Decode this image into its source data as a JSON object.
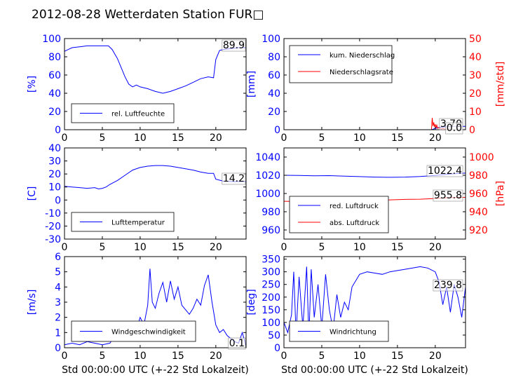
{
  "title": "2012-08-28 Wetterdaten Station FUR□",
  "colors": {
    "primary": "#0000ff",
    "secondary": "#ff0000",
    "text": "#000000"
  },
  "chart_data": [
    {
      "id": "humidity",
      "type": "line",
      "ylabel": "[%]",
      "xlim": [
        0,
        24
      ],
      "ylim": [
        0,
        100
      ],
      "xticks": [
        0,
        5,
        10,
        15,
        20
      ],
      "yticks": [
        0,
        20,
        40,
        60,
        80,
        100
      ],
      "legend_position": "lower-left",
      "value_label": "89.9",
      "series": [
        {
          "name": "rel. Luftfeuchte",
          "color": "#0000ff",
          "x": [
            0,
            0.5,
            1,
            2,
            3,
            4,
            5,
            5.8,
            6.3,
            7,
            7.5,
            8,
            8.5,
            9,
            9.5,
            10,
            11,
            12,
            13,
            14,
            15,
            16,
            17,
            18,
            19,
            19.7,
            20,
            20.5,
            21,
            22,
            23,
            24
          ],
          "y": [
            86,
            88,
            90,
            91,
            92,
            92,
            92,
            92,
            88,
            78,
            68,
            58,
            50,
            47,
            49,
            47,
            45,
            42,
            40,
            42,
            45,
            48,
            52,
            56,
            58,
            57,
            77,
            87,
            88,
            89,
            90,
            90
          ]
        }
      ]
    },
    {
      "id": "precipitation",
      "type": "line",
      "ylabel": "[mm]",
      "ylabel_right": "[mm/std]",
      "xlim": [
        0,
        24
      ],
      "ylim": [
        0,
        100
      ],
      "ylim_right": [
        0,
        50
      ],
      "xticks": [
        0,
        5,
        10,
        15,
        20
      ],
      "yticks": [
        0,
        20,
        40,
        60,
        80,
        100
      ],
      "yticks_right": [
        0,
        10,
        20,
        30,
        40,
        50
      ],
      "legend_position": "upper-left",
      "value_labels": [
        "3.70",
        "0.0"
      ],
      "series": [
        {
          "name": "kum. Niederschlag",
          "color": "#0000ff",
          "axis": "left",
          "x": [
            0,
            19.5,
            19.7,
            20,
            20.5,
            21,
            22,
            24
          ],
          "y": [
            0,
            0,
            0.5,
            1.5,
            2.5,
            3,
            3.5,
            3.7
          ]
        },
        {
          "name": "Niederschlagsrate",
          "color": "#ff0000",
          "axis": "right",
          "x": [
            0,
            19.5,
            19.6,
            19.7,
            19.8,
            19.9,
            20.0,
            20.1,
            20.2,
            20.3,
            20.5,
            20.8,
            21.0,
            21.3,
            21.6,
            22,
            24
          ],
          "y": [
            0,
            0,
            6.5,
            2,
            4,
            1.5,
            3,
            1,
            2.5,
            0.8,
            1.2,
            0.3,
            0.8,
            0.2,
            0.5,
            0,
            0
          ]
        }
      ]
    },
    {
      "id": "temperature",
      "type": "line",
      "ylabel": "[C]",
      "xlim": [
        0,
        24
      ],
      "ylim": [
        -30,
        40
      ],
      "xticks": [
        0,
        5,
        10,
        15,
        20
      ],
      "yticks": [
        -30,
        -20,
        -10,
        0,
        10,
        20,
        30,
        40
      ],
      "legend_position": "lower-left",
      "value_label": "14.2",
      "series": [
        {
          "name": "Lufttemperatur",
          "color": "#0000ff",
          "x": [
            0,
            1,
            2,
            3,
            4,
            4.5,
            5,
            5.5,
            6,
            7,
            8,
            9,
            10,
            11,
            12,
            13,
            14,
            15,
            16,
            17,
            18,
            19,
            19.7,
            20,
            21,
            22,
            23,
            24
          ],
          "y": [
            10.5,
            10,
            9.5,
            9,
            9.5,
            8.5,
            9,
            10,
            12,
            15,
            19,
            23,
            25,
            26,
            26.5,
            26.5,
            26,
            25,
            24,
            23,
            21.5,
            20.5,
            20.5,
            16,
            14.5,
            14.2,
            14.2,
            14.2
          ]
        }
      ]
    },
    {
      "id": "pressure",
      "type": "line",
      "ylabel_right": "[hPa]",
      "xlim": [
        0,
        24
      ],
      "ylim": [
        950,
        1050
      ],
      "ylim_right": [
        910,
        1010
      ],
      "xticks": [
        0,
        5,
        10,
        15,
        20
      ],
      "yticks": [
        960,
        980,
        1000,
        1020,
        1040
      ],
      "yticks_right": [
        920,
        940,
        960,
        980,
        1000
      ],
      "legend_position": "lower-left",
      "value_labels": [
        "1022.4",
        "955.8"
      ],
      "series": [
        {
          "name": "red. Luftdruck",
          "color": "#0000ff",
          "axis": "left",
          "x": [
            0,
            2,
            4,
            6,
            8,
            10,
            12,
            14,
            16,
            18,
            20,
            22,
            24
          ],
          "y": [
            1020,
            1019.8,
            1019.5,
            1019.6,
            1019,
            1018.5,
            1018,
            1017.8,
            1018,
            1018.7,
            1019.8,
            1021.5,
            1022.4
          ]
        },
        {
          "name": "abs. Luftdruck",
          "color": "#ff0000",
          "axis": "right",
          "x": [
            0,
            2,
            4,
            6,
            8,
            10,
            12,
            14,
            16,
            18,
            20,
            22,
            24
          ],
          "y": [
            951.5,
            951.2,
            951,
            951.5,
            952,
            952.5,
            952.8,
            953,
            953.5,
            953.8,
            954.5,
            955.5,
            955.8
          ]
        }
      ]
    },
    {
      "id": "wind_speed",
      "type": "line",
      "ylabel": "[m/s]",
      "xlabel": "Std 00:00:00 UTC (+-22 Std Lokalzeit)",
      "xlim": [
        0,
        24
      ],
      "ylim": [
        0,
        6
      ],
      "xticks": [
        0,
        5,
        10,
        15,
        20
      ],
      "yticks": [
        0,
        1,
        2,
        3,
        4,
        5,
        6
      ],
      "legend_position": "lower-left",
      "value_label": "0.1",
      "series": [
        {
          "name": "Windgeschwindigkeit",
          "color": "#0000ff",
          "x": [
            0,
            1,
            2,
            3,
            4,
            5,
            6,
            6.5,
            7,
            7.5,
            8,
            8.5,
            9,
            9.5,
            10,
            10.5,
            11,
            11.3,
            11.6,
            12,
            12.5,
            13,
            13.5,
            14,
            14.5,
            15,
            15.5,
            16,
            16.5,
            17,
            17.5,
            18,
            18.5,
            19,
            19.5,
            20,
            20.5,
            21,
            21.5,
            22,
            22.5,
            23,
            23.5,
            24
          ],
          "y": [
            0.2,
            0.3,
            0.2,
            0.4,
            0.3,
            0.2,
            0.3,
            0.7,
            1.0,
            0.8,
            1.2,
            0.9,
            1.5,
            1.2,
            2.0,
            1.5,
            2.8,
            5.2,
            3.0,
            2.6,
            3.6,
            4.3,
            3.0,
            4.4,
            3.2,
            4.0,
            2.8,
            2.5,
            2.2,
            2.6,
            3.2,
            2.8,
            4.1,
            4.8,
            3.0,
            1.5,
            1.0,
            1.2,
            0.8,
            0.6,
            0.4,
            0.3,
            1.0,
            0.1
          ]
        }
      ]
    },
    {
      "id": "wind_direction",
      "type": "line",
      "ylabel": "[deg]",
      "xlabel": "Std 00:00:00 UTC (+-22 Std Lokalzeit)",
      "xlim": [
        0,
        24
      ],
      "ylim": [
        0,
        360
      ],
      "xticks": [
        0,
        5,
        10,
        15,
        20
      ],
      "yticks": [
        0,
        50,
        100,
        150,
        200,
        250,
        300,
        350
      ],
      "legend_position": "lower-left",
      "value_label": "239.8",
      "series": [
        {
          "name": "Windrichtung",
          "color": "#0000ff",
          "x": [
            0,
            0.5,
            1,
            1.3,
            1.6,
            2,
            2.5,
            3,
            3.3,
            3.6,
            4,
            4.5,
            5,
            5.5,
            6,
            6.5,
            7,
            7.5,
            8,
            8.5,
            9,
            10,
            11,
            12,
            13,
            14,
            15,
            16,
            17,
            18,
            19,
            20,
            20.5,
            21,
            21.5,
            22,
            22.5,
            23,
            23.5,
            24
          ],
          "y": [
            100,
            60,
            130,
            300,
            50,
            280,
            80,
            320,
            40,
            310,
            120,
            250,
            80,
            290,
            150,
            70,
            210,
            120,
            180,
            150,
            240,
            290,
            300,
            295,
            290,
            300,
            305,
            310,
            315,
            320,
            315,
            300,
            260,
            170,
            240,
            140,
            250,
            200,
            120,
            240
          ]
        }
      ]
    }
  ]
}
